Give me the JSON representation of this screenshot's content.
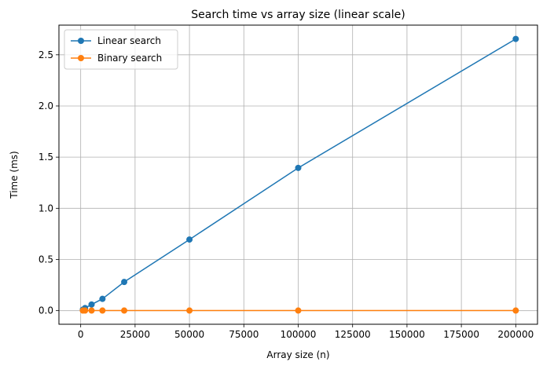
{
  "chart_data": {
    "type": "line",
    "title": "Search time vs array size (linear scale)",
    "xlabel": "Array size (n)",
    "ylabel": "Time (ms)",
    "xlim": [
      -10000,
      210000
    ],
    "ylim": [
      -0.133,
      2.79
    ],
    "x_ticks": [
      0,
      25000,
      50000,
      75000,
      100000,
      125000,
      150000,
      175000,
      200000
    ],
    "y_ticks": [
      0.0,
      0.5,
      1.0,
      1.5,
      2.0,
      2.5
    ],
    "x_tick_labels": [
      "0",
      "25000",
      "50000",
      "75000",
      "100000",
      "125000",
      "150000",
      "175000",
      "200000"
    ],
    "y_tick_labels": [
      "0.0",
      "0.5",
      "1.0",
      "1.5",
      "2.0",
      "2.5"
    ],
    "grid": true,
    "legend_position": "top-left",
    "x": [
      1000,
      2000,
      5000,
      10000,
      20000,
      50000,
      100000,
      200000
    ],
    "series": [
      {
        "name": "Linear search",
        "color": "#1f77b4",
        "values": [
          0.01,
          0.025,
          0.06,
          0.115,
          0.28,
          0.695,
          1.395,
          2.655
        ]
      },
      {
        "name": "Binary search",
        "color": "#ff7f0e",
        "values": [
          0.001,
          0.001,
          0.001,
          0.001,
          0.001,
          0.001,
          0.001,
          0.001
        ]
      }
    ]
  }
}
